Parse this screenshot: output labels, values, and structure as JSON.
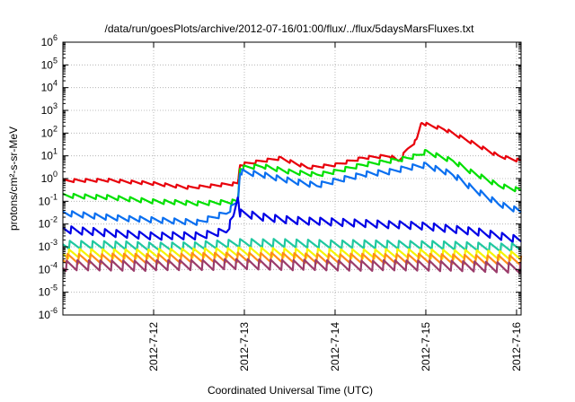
{
  "chart_data": {
    "type": "line",
    "title": "/data/run/goesPlots/archive/2012-07-16/01:00/flux/../flux/5daysMarsFluxes.txt",
    "xlabel": "Coordinated Universal Time (UTC)",
    "ylabel": "protons/cm²-s-sr-MeV",
    "yscale": "log",
    "ylim_exp": [
      -6,
      6
    ],
    "y_ticks": [
      {
        "exp": 6,
        "label": "10^6"
      },
      {
        "exp": 5,
        "label": "10^5"
      },
      {
        "exp": 4,
        "label": "10^4"
      },
      {
        "exp": 3,
        "label": "10^3"
      },
      {
        "exp": 2,
        "label": "10^2"
      },
      {
        "exp": 1,
        "label": "10^1"
      },
      {
        "exp": 0,
        "label": "10^0"
      },
      {
        "exp": -1,
        "label": "10^-1"
      },
      {
        "exp": -2,
        "label": "10^-2"
      },
      {
        "exp": -3,
        "label": "10^-3"
      },
      {
        "exp": -4,
        "label": "10^-4"
      },
      {
        "exp": -5,
        "label": "10^-5"
      },
      {
        "exp": -6,
        "label": "10^-6"
      }
    ],
    "xlim_days": [
      -1.0,
      4.05
    ],
    "x_ticks": [
      {
        "day": 0,
        "label": "2012-7-12"
      },
      {
        "day": 1,
        "label": "2012-7-13"
      },
      {
        "day": 2,
        "label": "2012-7-14"
      },
      {
        "day": 3,
        "label": "2012-7-15"
      },
      {
        "day": 4,
        "label": "2012-7-16"
      }
    ],
    "grid": true,
    "series": [
      {
        "color": "#e8000b",
        "points": [
          [
            -1.0,
            0.8
          ],
          [
            -0.5,
            0.85
          ],
          [
            0.0,
            0.6
          ],
          [
            0.4,
            0.4
          ],
          [
            0.8,
            0.55
          ],
          [
            0.93,
            0.6
          ],
          [
            0.95,
            4
          ],
          [
            1.2,
            6
          ],
          [
            1.4,
            8
          ],
          [
            1.7,
            3
          ],
          [
            2.0,
            4
          ],
          [
            2.3,
            8
          ],
          [
            2.6,
            10
          ],
          [
            2.7,
            6
          ],
          [
            2.8,
            20
          ],
          [
            2.9,
            50
          ],
          [
            2.95,
            300
          ],
          [
            3.0,
            250
          ],
          [
            3.2,
            150
          ],
          [
            3.5,
            40
          ],
          [
            3.8,
            10
          ],
          [
            4.05,
            6
          ]
        ],
        "sawtooth": 1.4
      },
      {
        "color": "#00e000",
        "points": [
          [
            -1.0,
            0.18
          ],
          [
            -0.5,
            0.15
          ],
          [
            0.0,
            0.1
          ],
          [
            0.5,
            0.08
          ],
          [
            0.93,
            0.1
          ],
          [
            0.95,
            3
          ],
          [
            1.2,
            3.5
          ],
          [
            1.5,
            2
          ],
          [
            1.8,
            1.5
          ],
          [
            2.0,
            2
          ],
          [
            2.3,
            4
          ],
          [
            2.6,
            6
          ],
          [
            2.8,
            8
          ],
          [
            2.9,
            10
          ],
          [
            3.0,
            15
          ],
          [
            3.3,
            6
          ],
          [
            3.5,
            2
          ],
          [
            3.8,
            0.5
          ],
          [
            4.05,
            0.3
          ]
        ],
        "sawtooth": 1.6
      },
      {
        "color": "#0a6ff0",
        "points": [
          [
            -1.0,
            0.03
          ],
          [
            -0.5,
            0.02
          ],
          [
            0.0,
            0.015
          ],
          [
            0.5,
            0.012
          ],
          [
            0.8,
            0.03
          ],
          [
            0.93,
            0.1
          ],
          [
            0.95,
            2
          ],
          [
            1.2,
            1.5
          ],
          [
            1.5,
            0.8
          ],
          [
            1.8,
            0.5
          ],
          [
            2.0,
            0.8
          ],
          [
            2.3,
            1.5
          ],
          [
            2.6,
            2
          ],
          [
            2.8,
            3
          ],
          [
            3.0,
            4
          ],
          [
            3.3,
            1.5
          ],
          [
            3.5,
            0.4
          ],
          [
            3.8,
            0.08
          ],
          [
            4.05,
            0.035
          ]
        ],
        "sawtooth": 1.8
      },
      {
        "color": "#0000e6",
        "points": [
          [
            -1.0,
            0.006
          ],
          [
            -0.5,
            0.004
          ],
          [
            0.0,
            0.003
          ],
          [
            0.5,
            0.003
          ],
          [
            0.8,
            0.005
          ],
          [
            0.88,
            0.02
          ],
          [
            0.93,
            0.2
          ],
          [
            0.95,
            0.03
          ],
          [
            1.2,
            0.02
          ],
          [
            1.5,
            0.015
          ],
          [
            2.0,
            0.012
          ],
          [
            2.5,
            0.01
          ],
          [
            3.0,
            0.008
          ],
          [
            3.5,
            0.005
          ],
          [
            4.05,
            0.002
          ]
        ],
        "sawtooth": 2.2
      },
      {
        "color": "#20c8a0",
        "points": [
          [
            -1.0,
            0.0012
          ],
          [
            -0.5,
            0.0012
          ],
          [
            0.0,
            0.001
          ],
          [
            0.5,
            0.0011
          ],
          [
            1.0,
            0.0015
          ],
          [
            2.0,
            0.0013
          ],
          [
            3.0,
            0.0012
          ],
          [
            4.05,
            0.0009
          ]
        ],
        "sawtooth": 2.4
      },
      {
        "color": "#f5f500",
        "points": [
          [
            -1.0,
            0.0005
          ],
          [
            0.0,
            0.0005
          ],
          [
            1.0,
            0.0006
          ],
          [
            2.0,
            0.0005
          ],
          [
            3.0,
            0.0005
          ],
          [
            4.05,
            0.0004
          ]
        ],
        "sawtooth": 2.6
      },
      {
        "color": "#ff8c1a",
        "points": [
          [
            -1.0,
            0.0003
          ],
          [
            0.0,
            0.0003
          ],
          [
            1.0,
            0.00035
          ],
          [
            2.0,
            0.0003
          ],
          [
            3.0,
            0.0003
          ],
          [
            4.05,
            0.00025
          ]
        ],
        "sawtooth": 2.8
      },
      {
        "color": "#9b3c6b",
        "points": [
          [
            -1.0,
            0.00015
          ],
          [
            0.0,
            0.00015
          ],
          [
            1.0,
            0.00017
          ],
          [
            2.0,
            0.00015
          ],
          [
            3.0,
            0.00015
          ],
          [
            4.05,
            0.00012
          ]
        ],
        "sawtooth": 3.0
      }
    ]
  }
}
